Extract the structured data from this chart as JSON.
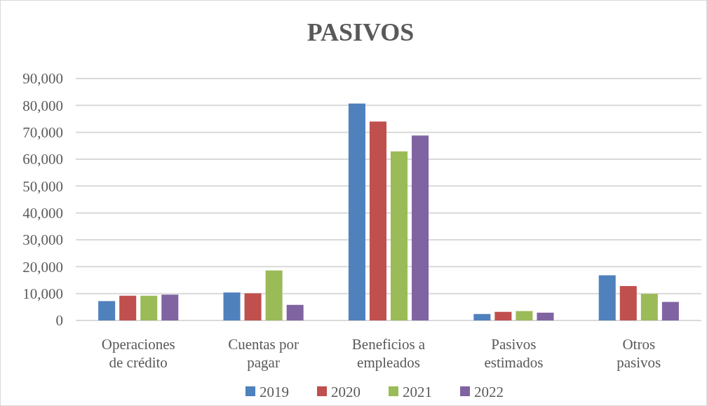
{
  "chart_data": {
    "type": "bar",
    "title": "PASIVOS",
    "categories": [
      "Operaciones de crédito",
      "Cuentas por pagar",
      "Beneficios a empleados",
      "Pasivos estimados",
      "Otros pasivos"
    ],
    "series": [
      {
        "name": "2019",
        "color": "#4f81bd",
        "values": [
          7200,
          10400,
          80700,
          2400,
          16800
        ]
      },
      {
        "name": "2020",
        "color": "#c0504d",
        "values": [
          9200,
          10100,
          74000,
          3200,
          12800
        ]
      },
      {
        "name": "2021",
        "color": "#9bbb59",
        "values": [
          9200,
          18600,
          62900,
          3500,
          9900
        ]
      },
      {
        "name": "2022",
        "color": "#8064a2",
        "values": [
          9600,
          5800,
          68800,
          2900,
          6900
        ]
      }
    ],
    "ylim": [
      0,
      90000
    ],
    "yticks": [
      {
        "value": 0,
        "label": "0"
      },
      {
        "value": 10000,
        "label": "10,000"
      },
      {
        "value": 20000,
        "label": "20,000"
      },
      {
        "value": 30000,
        "label": "30,000"
      },
      {
        "value": 40000,
        "label": "40,000"
      },
      {
        "value": 50000,
        "label": "50,000"
      },
      {
        "value": 60000,
        "label": "60,000"
      },
      {
        "value": 70000,
        "label": "70,000"
      },
      {
        "value": 80000,
        "label": "80,000"
      },
      {
        "value": 90000,
        "label": "90,000"
      }
    ],
    "grid": "y",
    "legend": "bottom"
  }
}
